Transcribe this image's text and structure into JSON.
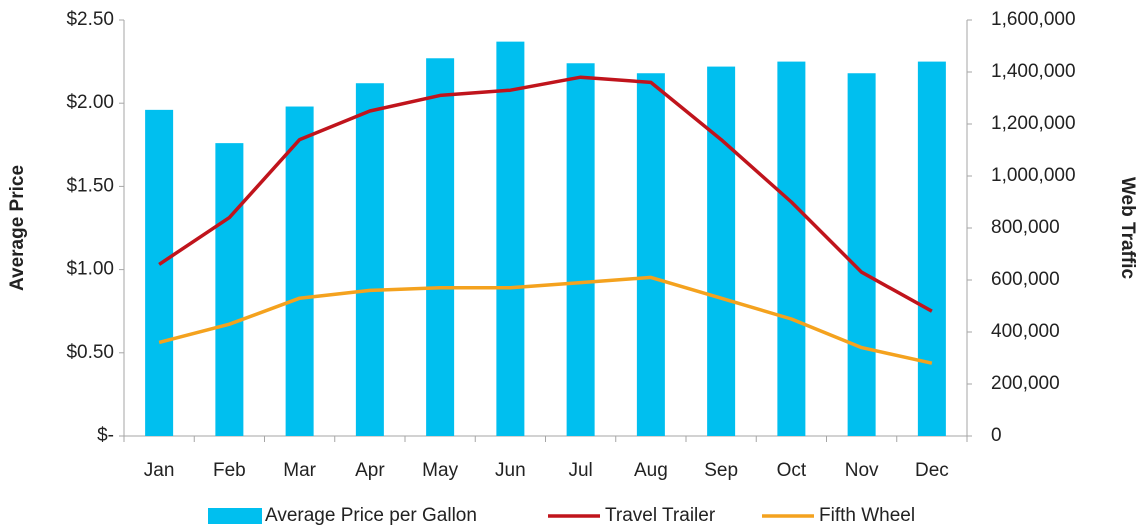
{
  "chart_data": {
    "type": "combo",
    "categories": [
      "Jan",
      "Feb",
      "Mar",
      "Apr",
      "May",
      "Jun",
      "Jul",
      "Aug",
      "Sep",
      "Oct",
      "Nov",
      "Dec"
    ],
    "y_label": "Average Price",
    "y2_label": "Web Traffic",
    "ylim": [
      0,
      2.5
    ],
    "yticks": [
      {
        "value": 0,
        "label": "$-"
      },
      {
        "value": 0.5,
        "label": "$0.50"
      },
      {
        "value": 1,
        "label": "$1.00"
      },
      {
        "value": 1.5,
        "label": "$1.50"
      },
      {
        "value": 2,
        "label": "$2.00"
      },
      {
        "value": 2.5,
        "label": "$2.50"
      }
    ],
    "y2lim": [
      0,
      1600000
    ],
    "y2ticks": [
      0,
      {
        "value": 200000,
        "label": "200,000"
      },
      {
        "value": 400000,
        "label": "400,000"
      },
      {
        "value": 600000,
        "label": "600,000"
      },
      {
        "value": 800000,
        "label": "800,000"
      },
      {
        "value": 1000000,
        "label": "1,000,000"
      },
      {
        "value": 1200000,
        "label": "1,200,000"
      },
      {
        "value": 1400000,
        "label": "1,400,000"
      },
      {
        "value": 1600000,
        "label": "1,600,000"
      }
    ],
    "grid": false,
    "legend": "bottom",
    "series": [
      {
        "name": "Average Price per Gallon",
        "type": "bar",
        "axis": "y",
        "color": "#00bfef",
        "values": [
          1.96,
          1.76,
          1.98,
          2.12,
          2.27,
          2.37,
          2.24,
          2.18,
          2.22,
          2.25,
          2.18,
          2.25
        ]
      },
      {
        "name": "Travel Trailer",
        "type": "line",
        "axis": "y2",
        "color": "#c0141c",
        "values": [
          660000,
          840000,
          1140000,
          1250000,
          1310000,
          1330000,
          1380000,
          1360000,
          1140000,
          900000,
          630000,
          480000
        ]
      },
      {
        "name": "Fifth Wheel",
        "type": "line",
        "axis": "y2",
        "color": "#f4a21e",
        "values": [
          360000,
          430000,
          530000,
          560000,
          570000,
          570000,
          590000,
          610000,
          530000,
          450000,
          340000,
          280000
        ]
      }
    ]
  }
}
